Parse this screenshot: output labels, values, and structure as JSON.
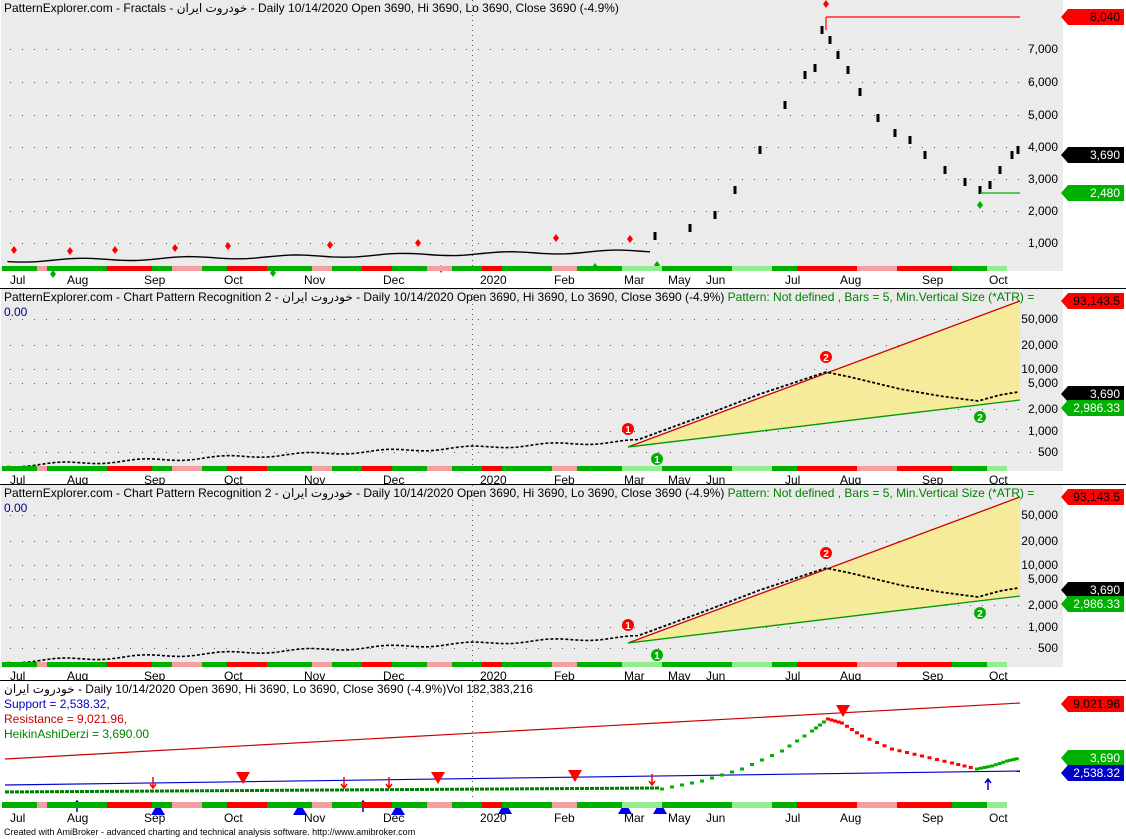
{
  "colors": {
    "panel_bg": "#ebebeb",
    "up": "#00b000",
    "down": "#ff0000",
    "neutral": "#000000",
    "support": "#0000cc",
    "resistance": "#cc0000",
    "band_fill": "#f5eb9a"
  },
  "months": [
    "Jul",
    "Aug",
    "Sep",
    "Oct",
    "Nov",
    "Dec",
    "2020",
    "Feb",
    "Mar",
    "May",
    "Jun",
    "Jul",
    "Aug",
    "Sep",
    "Oct"
  ],
  "pane1": {
    "title": "PatternExplorer.com - Fractals - خودروت ایران - Daily 10/14/2020 Open 3690, Hi 3690, Lo 3690, Close 3690 (-4.9%)",
    "y_ticks": [
      "7,000",
      "6,000",
      "5,000",
      "4,000",
      "3,000",
      "2,000",
      "1,000"
    ],
    "badges": {
      "top": "8,040",
      "close": "3,690",
      "low": "2,480"
    }
  },
  "pane2": {
    "title_a": "PatternExplorer.com - Chart Pattern Recognition 2 - خودروت ایران - Daily 10/14/2020 Open 3690, Hi 3690, Lo 3690, Close 3690 (-4.9%) ",
    "title_b": "Pattern: Not defined , Bars = 5, Min.Vertical Size (*ATR) =",
    "title_c": "0.00",
    "y_ticks": [
      "50,000",
      "20,000",
      "10,000",
      "5,000",
      "2,000",
      "1,000",
      "500"
    ],
    "badges": {
      "top": "93,143.5",
      "close": "3,690",
      "low": "2,986.33"
    },
    "markers": [
      "1",
      "2",
      "1",
      "2"
    ]
  },
  "pane3": {
    "title_a": "PatternExplorer.com - Chart Pattern Recognition 2 - خودروت ایران - Daily 10/14/2020 Open 3690, Hi 3690, Lo 3690, Close 3690 (-4.9%) ",
    "title_b": "Pattern: Not defined , Bars = 5, Min.Vertical Size (*ATR) =",
    "title_c": "0.00",
    "y_ticks": [
      "50,000",
      "20,000",
      "10,000",
      "5,000",
      "2,000",
      "1,000",
      "500"
    ],
    "badges": {
      "top": "93,143.5",
      "close": "3,690",
      "low": "2,986.33"
    },
    "markers": [
      "1",
      "2",
      "1",
      "2"
    ]
  },
  "pane4": {
    "title": "خودروت ایران - Daily 10/14/2020 Open 3690, Hi 3690, Lo 3690, Close 3690 (-4.9%)Vol 182,383,216",
    "support": "Support = 2,538.32,",
    "resistance": "Resistance = 9,021.96,",
    "heikin": "HeikinAshiDerzi = 3,690.00",
    "badges": {
      "resistance": "9,021.96",
      "close": "3,690",
      "support": "2,538.32"
    }
  },
  "footer": "Created with AmiBroker - advanced charting and technical analysis software. http://www.amibroker.com"
}
